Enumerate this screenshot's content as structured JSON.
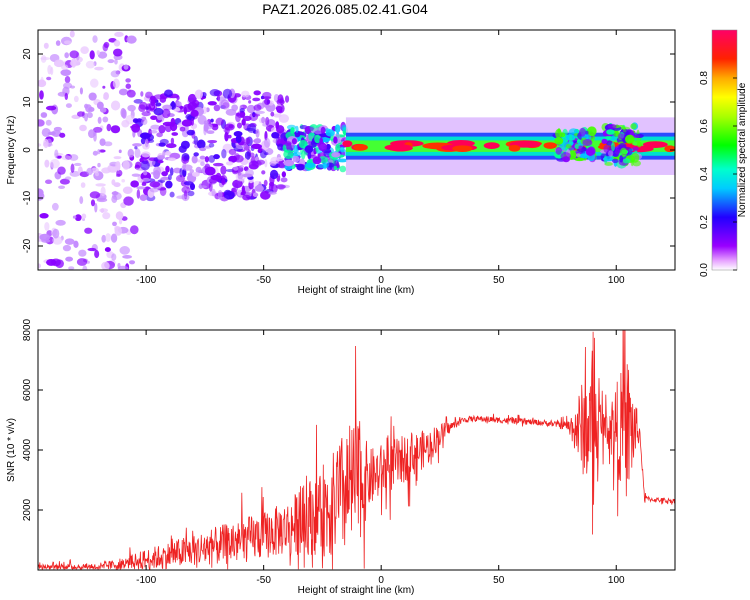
{
  "title": "PAZ1.2026.085.02.41.G04",
  "colors": {
    "axis": "#000000",
    "snr_line": "#ee2222",
    "background": "#ffffff"
  },
  "chart_data": [
    {
      "type": "heatmap",
      "name": "spectrogram",
      "xlabel": "Height of straight line (km)",
      "ylabel": "Frequency (Hz)",
      "xlim": [
        -146,
        125
      ],
      "ylim": [
        -25,
        25
      ],
      "xticks": [
        -100,
        -50,
        0,
        50,
        100
      ],
      "yticks": [
        -20,
        -10,
        0,
        10,
        20
      ],
      "colorbar": {
        "label": "Normalized spectral amplitude",
        "range": [
          0.0,
          1.0
        ],
        "ticks": [
          0.0,
          0.2,
          0.4,
          0.6,
          0.8
        ],
        "tick_labels": [
          "0.0",
          "0.2",
          "0.4",
          "0.6",
          "0.8"
        ],
        "colormap": [
          "#ffffff",
          "#9900ff",
          "#2200ff",
          "#00ffff",
          "#00ff00",
          "#ffff00",
          "#ff0000",
          "#ff0066"
        ]
      },
      "features": [
        {
          "x_range": [
            -146,
            -105
          ],
          "freq_spread_hz": [
            -25,
            25
          ],
          "amplitude": 0.08,
          "description": "scattered weak"
        },
        {
          "x_range": [
            -105,
            -40
          ],
          "freq_spread_hz": [
            -10,
            12
          ],
          "amplitude": 0.15
        },
        {
          "x_range": [
            -40,
            -15
          ],
          "freq_spread_hz": [
            -4,
            5
          ],
          "amplitude": 0.3
        },
        {
          "x_range": [
            -15,
            125
          ],
          "center_freq_hz": 0.8,
          "width_hz": 2.0,
          "amplitude": 0.95,
          "description": "strong narrow tone"
        },
        {
          "x_range": [
            75,
            90
          ],
          "freq_spread_hz": [
            -2,
            4
          ],
          "amplitude": 0.4
        },
        {
          "x_range": [
            95,
            110
          ],
          "freq_spread_hz": [
            -3,
            5
          ],
          "amplitude": 0.4
        }
      ]
    },
    {
      "type": "line",
      "name": "snr",
      "xlabel": "Height of straight line (km)",
      "ylabel": "SNR (10 * v/v)",
      "xlim": [
        -146,
        125
      ],
      "ylim": [
        0,
        8000
      ],
      "xticks": [
        -100,
        -50,
        0,
        50,
        100
      ],
      "yticks": [
        2000,
        4000,
        6000,
        8000
      ],
      "series": [
        {
          "name": "SNR",
          "envelope": {
            "x": [
              -146,
              -120,
              -110,
              -100,
              -90,
              -80,
              -70,
              -60,
              -50,
              -40,
              -30,
              -20,
              -15,
              -10,
              -5,
              0,
              10,
              20,
              25,
              30,
              35,
              40,
              50,
              60,
              70,
              75,
              80,
              85,
              90,
              95,
              100,
              105,
              110,
              112,
              115,
              125
            ],
            "mean": [
              100,
              120,
              200,
              350,
              500,
              650,
              800,
              950,
              1150,
              1400,
              1800,
              2200,
              2600,
              2900,
              3050,
              3300,
              3700,
              4100,
              4500,
              4800,
              5000,
              5050,
              5000,
              4950,
              4900,
              4850,
              4800,
              4700,
              4800,
              4800,
              4750,
              4700,
              4600,
              2400,
              2350,
              2300
            ],
            "noise": [
              100,
              120,
              200,
              350,
              450,
              550,
              650,
              750,
              800,
              900,
              1300,
              1800,
              2200,
              2200,
              1000,
              900,
              800,
              600,
              400,
              150,
              100,
              100,
              100,
              100,
              100,
              100,
              200,
              1500,
              2000,
              400,
              1500,
              2500,
              200,
              100,
              80,
              80
            ]
          }
        }
      ]
    }
  ]
}
